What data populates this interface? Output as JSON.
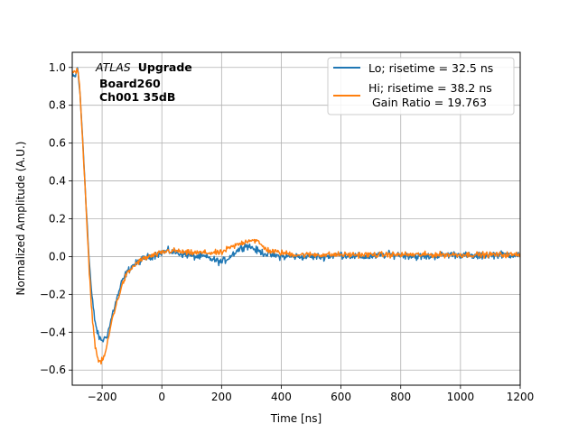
{
  "chart_data": {
    "type": "line",
    "title": "",
    "xlabel": "Time [ns]",
    "ylabel": "Normalized Amplitude (A.U.)",
    "xlim": [
      -300,
      1200
    ],
    "ylim": [
      -0.68,
      1.08
    ],
    "xticks": [
      -200,
      0,
      200,
      400,
      600,
      800,
      1000,
      1200
    ],
    "yticks": [
      -0.6,
      -0.4,
      -0.2,
      0.0,
      0.2,
      0.4,
      0.6,
      0.8,
      1.0
    ],
    "xtick_labels": [
      "−200",
      "0",
      "200",
      "400",
      "600",
      "800",
      "1000",
      "1200"
    ],
    "ytick_labels": [
      "−0.6",
      "−0.4",
      "−0.2",
      "0.0",
      "0.2",
      "0.4",
      "0.6",
      "0.8",
      "1.0"
    ],
    "grid": true,
    "legend_position": "top-right",
    "annotation": {
      "italic": "ATLAS",
      "bold": "Upgrade",
      "line2": "Board260",
      "line3": "Ch001 35dB"
    },
    "series": [
      {
        "name": "Lo; risetime = 32.5 ns",
        "color": "#1f77b4",
        "noise": 0.028,
        "x": [
          -290,
          -282,
          -275,
          -265,
          -255,
          -245,
          -235,
          -225,
          -215,
          -205,
          -195,
          -185,
          -175,
          -165,
          -150,
          -135,
          -120,
          -100,
          -80,
          -60,
          -40,
          -20,
          0,
          20,
          50,
          80,
          110,
          140,
          160,
          180,
          200,
          220,
          250,
          280,
          300,
          320,
          340,
          360,
          400,
          450,
          500,
          550,
          600,
          650,
          700,
          750,
          800,
          850,
          900,
          950,
          1000,
          1050,
          1100,
          1150,
          1200
        ],
        "y": [
          0.95,
          1.0,
          0.88,
          0.62,
          0.32,
          0.02,
          -0.2,
          -0.33,
          -0.41,
          -0.44,
          -0.44,
          -0.42,
          -0.37,
          -0.3,
          -0.22,
          -0.14,
          -0.09,
          -0.05,
          -0.03,
          -0.01,
          0.0,
          0.01,
          0.02,
          0.03,
          0.02,
          0.01,
          0.0,
          0.0,
          -0.01,
          -0.02,
          -0.03,
          -0.01,
          0.03,
          0.06,
          0.05,
          0.03,
          0.02,
          0.01,
          0.0,
          0.0,
          0.0,
          0.0,
          0.01,
          0.0,
          0.0,
          0.01,
          0.01,
          0.0,
          0.0,
          0.01,
          0.01,
          0.0,
          0.01,
          0.01,
          0.01
        ]
      },
      {
        "name": "Hi; risetime = 38.2 ns\n Gain Ratio = 19.763",
        "color": "#ff7f0e",
        "noise": 0.022,
        "x": [
          -290,
          -282,
          -275,
          -265,
          -255,
          -245,
          -235,
          -225,
          -215,
          -205,
          -195,
          -185,
          -175,
          -165,
          -150,
          -135,
          -120,
          -100,
          -80,
          -60,
          -40,
          -20,
          0,
          20,
          50,
          80,
          110,
          140,
          160,
          180,
          200,
          220,
          250,
          280,
          300,
          320,
          340,
          360,
          400,
          450,
          500,
          550,
          600,
          650,
          700,
          750,
          800,
          850,
          900,
          950,
          1000,
          1050,
          1100,
          1150,
          1200
        ],
        "y": [
          0.97,
          1.0,
          0.9,
          0.6,
          0.3,
          -0.02,
          -0.28,
          -0.45,
          -0.54,
          -0.56,
          -0.54,
          -0.48,
          -0.4,
          -0.32,
          -0.24,
          -0.16,
          -0.1,
          -0.06,
          -0.03,
          -0.01,
          0.0,
          0.01,
          0.02,
          0.03,
          0.03,
          0.02,
          0.02,
          0.02,
          0.02,
          0.02,
          0.02,
          0.04,
          0.06,
          0.08,
          0.09,
          0.08,
          0.05,
          0.03,
          0.02,
          0.01,
          0.01,
          0.01,
          0.01,
          0.01,
          0.01,
          0.01,
          0.01,
          0.01,
          0.01,
          0.01,
          0.01,
          0.01,
          0.01,
          0.01,
          0.01
        ]
      }
    ]
  }
}
